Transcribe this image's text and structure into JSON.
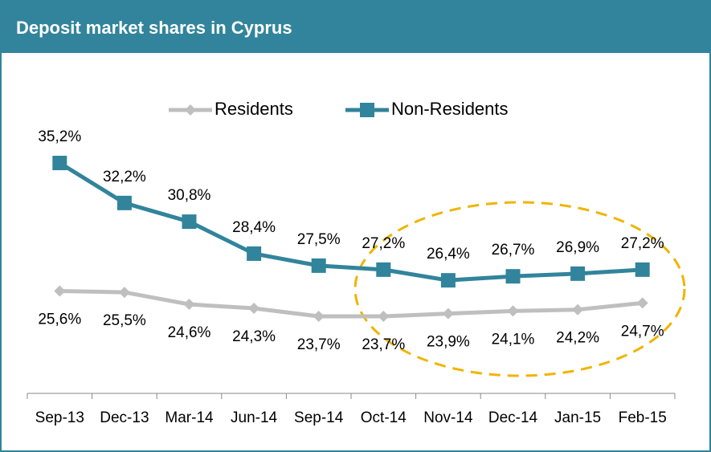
{
  "chart_data": {
    "type": "line",
    "title": "Deposit market shares in Cyprus",
    "categories": [
      "Sep-13",
      "Dec-13",
      "Mar-14",
      "Jun-14",
      "Sep-14",
      "Oct-14",
      "Nov-14",
      "Dec-14",
      "Jan-15",
      "Feb-15"
    ],
    "series": [
      {
        "name": "Residents",
        "color": "#bfbfbf",
        "marker": "diamond",
        "values": [
          25.6,
          25.5,
          24.6,
          24.3,
          23.7,
          23.7,
          23.9,
          24.1,
          24.2,
          24.7
        ],
        "value_labels": [
          "25,6%",
          "25,5%",
          "24,6%",
          "24,3%",
          "23,7%",
          "23,7%",
          "23,9%",
          "24,1%",
          "24,2%",
          "24,7%"
        ]
      },
      {
        "name": "Non-Residents",
        "color": "#31849b",
        "marker": "square",
        "values": [
          35.2,
          32.2,
          30.8,
          28.4,
          27.5,
          27.2,
          26.4,
          26.7,
          26.9,
          27.2
        ],
        "value_labels": [
          "35,2%",
          "32,2%",
          "30,8%",
          "28,4%",
          "27,5%",
          "27,2%",
          "26,4%",
          "26,7%",
          "26,9%",
          "27,2%"
        ]
      }
    ],
    "legend": "top"
  }
}
